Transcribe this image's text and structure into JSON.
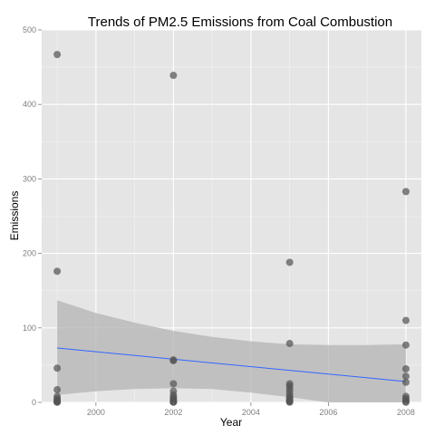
{
  "chart_data": {
    "type": "scatter",
    "title": "Trends of PM2.5 Emissions from Coal Combustion",
    "xlabel": "Year",
    "ylabel": "Emissions",
    "xlim": [
      1998.6,
      2008.4
    ],
    "ylim": [
      0,
      500
    ],
    "x_ticks": [
      2000,
      2002,
      2004,
      2006,
      2008
    ],
    "y_ticks": [
      0,
      100,
      200,
      300,
      400,
      500
    ],
    "grid": true,
    "colors": {
      "panel": "#e5e5e5",
      "grid_major": "#ffffff",
      "grid_minor": "#f2f2f2",
      "points": "#555555",
      "fit_line": "#3366ff",
      "confidence_band": "#b3b3b3"
    },
    "points": [
      {
        "x": 1999,
        "y": 467
      },
      {
        "x": 1999,
        "y": 176
      },
      {
        "x": 1999,
        "y": 46
      },
      {
        "x": 1999,
        "y": 17
      },
      {
        "x": 1999,
        "y": 8
      },
      {
        "x": 1999,
        "y": 5
      },
      {
        "x": 1999,
        "y": 3
      },
      {
        "x": 1999,
        "y": 2
      },
      {
        "x": 1999,
        "y": 1
      },
      {
        "x": 1999,
        "y": 0.5
      },
      {
        "x": 1999,
        "y": 0.2
      },
      {
        "x": 2002,
        "y": 439
      },
      {
        "x": 2002,
        "y": 57
      },
      {
        "x": 2002,
        "y": 56
      },
      {
        "x": 2002,
        "y": 25
      },
      {
        "x": 2002,
        "y": 15
      },
      {
        "x": 2002,
        "y": 10
      },
      {
        "x": 2002,
        "y": 7
      },
      {
        "x": 2002,
        "y": 5
      },
      {
        "x": 2002,
        "y": 3
      },
      {
        "x": 2002,
        "y": 2
      },
      {
        "x": 2002,
        "y": 1
      },
      {
        "x": 2002,
        "y": 0.5
      },
      {
        "x": 2002,
        "y": 0.2
      },
      {
        "x": 2005,
        "y": 188
      },
      {
        "x": 2005,
        "y": 79
      },
      {
        "x": 2005,
        "y": 25
      },
      {
        "x": 2005,
        "y": 22
      },
      {
        "x": 2005,
        "y": 18
      },
      {
        "x": 2005,
        "y": 14
      },
      {
        "x": 2005,
        "y": 10
      },
      {
        "x": 2005,
        "y": 7
      },
      {
        "x": 2005,
        "y": 5
      },
      {
        "x": 2005,
        "y": 3
      },
      {
        "x": 2005,
        "y": 2
      },
      {
        "x": 2005,
        "y": 1
      },
      {
        "x": 2005,
        "y": 0.3
      },
      {
        "x": 2008,
        "y": 283
      },
      {
        "x": 2008,
        "y": 110
      },
      {
        "x": 2008,
        "y": 77
      },
      {
        "x": 2008,
        "y": 45
      },
      {
        "x": 2008,
        "y": 35
      },
      {
        "x": 2008,
        "y": 27
      },
      {
        "x": 2008,
        "y": 8
      },
      {
        "x": 2008,
        "y": 5
      },
      {
        "x": 2008,
        "y": 3
      },
      {
        "x": 2008,
        "y": 1
      },
      {
        "x": 2008,
        "y": 0.3
      }
    ],
    "fit_line": [
      {
        "x": 1999,
        "y": 73
      },
      {
        "x": 2008,
        "y": 28
      }
    ],
    "confidence_band": {
      "x": [
        1999,
        2000,
        2001,
        2002,
        2003,
        2004,
        2005,
        2006,
        2007,
        2008
      ],
      "upper": [
        137,
        120,
        107,
        96,
        88,
        82,
        78,
        77,
        77,
        78
      ],
      "lower": [
        10,
        15,
        18,
        19,
        18,
        13,
        7,
        0,
        -10,
        -22
      ]
    }
  }
}
